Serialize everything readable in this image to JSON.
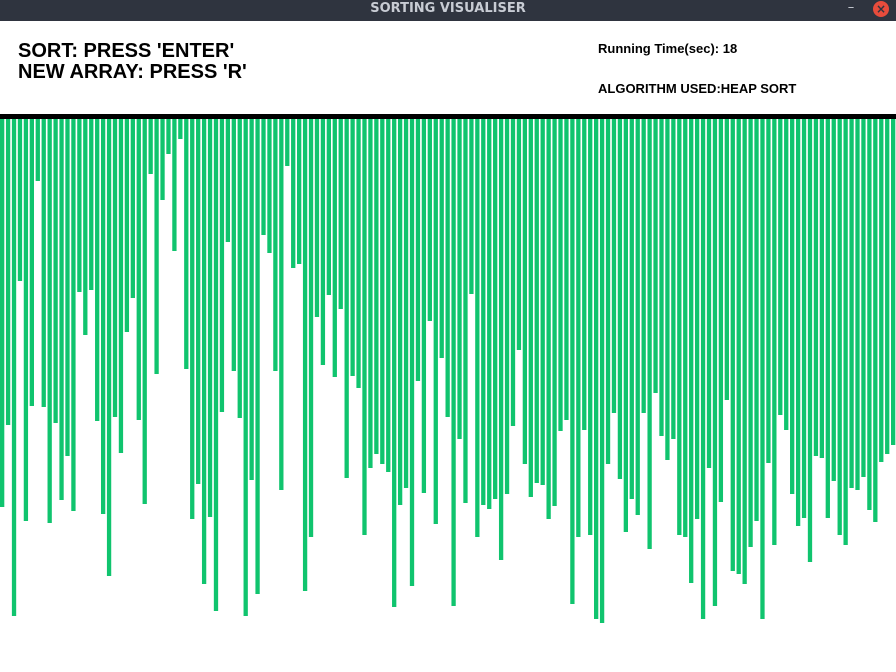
{
  "window": {
    "title": "SORTING VISUALISER",
    "minimize_glyph": "–",
    "close_glyph": "×",
    "close_color": "#e74c3c"
  },
  "instructions": {
    "sort": "SORT: PRESS 'ENTER'",
    "new_array": "NEW ARRAY: PRESS 'R'"
  },
  "info": {
    "running_time": "Running Time(sec): 18",
    "algorithm": "ALGORITHM USED:HEAP SORT"
  },
  "bar_color": "#10c46e",
  "bar_heights": [
    388,
    306,
    497,
    162,
    402,
    287,
    62,
    288,
    404,
    304,
    381,
    337,
    392,
    173,
    216,
    171,
    302,
    395,
    457,
    298,
    334,
    213,
    179,
    301,
    385,
    55,
    255,
    81,
    35,
    132,
    20,
    250,
    400,
    365,
    465,
    398,
    492,
    293,
    123,
    252,
    299,
    497,
    361,
    475,
    116,
    134,
    252,
    371,
    47,
    149,
    145,
    472,
    418,
    198,
    246,
    176,
    258,
    190,
    359,
    257,
    269,
    416,
    349,
    335,
    345,
    353,
    488,
    386,
    369,
    467,
    262,
    374,
    202,
    405,
    239,
    298,
    487,
    320,
    384,
    175,
    418,
    386,
    390,
    380,
    441,
    375,
    307,
    231,
    345,
    378,
    364,
    366,
    400,
    387,
    312,
    301,
    485,
    418,
    311,
    416,
    500,
    504,
    345,
    294,
    360,
    413,
    380,
    396,
    294,
    430,
    274,
    317,
    341,
    320,
    416,
    418,
    464,
    400,
    500,
    349,
    487,
    383,
    281,
    452,
    455,
    465,
    428,
    402,
    500,
    344,
    426,
    296,
    311,
    375,
    407,
    399,
    443,
    337,
    339,
    399,
    362,
    416,
    426,
    369,
    371,
    358,
    391,
    403,
    343,
    335,
    326,
    314,
    329,
    363,
    360,
    295,
    301,
    265,
    385,
    234,
    251,
    203,
    349,
    215,
    178,
    201,
    125,
    151,
    161,
    169,
    250,
    202,
    184,
    175,
    141,
    139,
    140,
    162,
    154,
    112,
    117
  ]
}
